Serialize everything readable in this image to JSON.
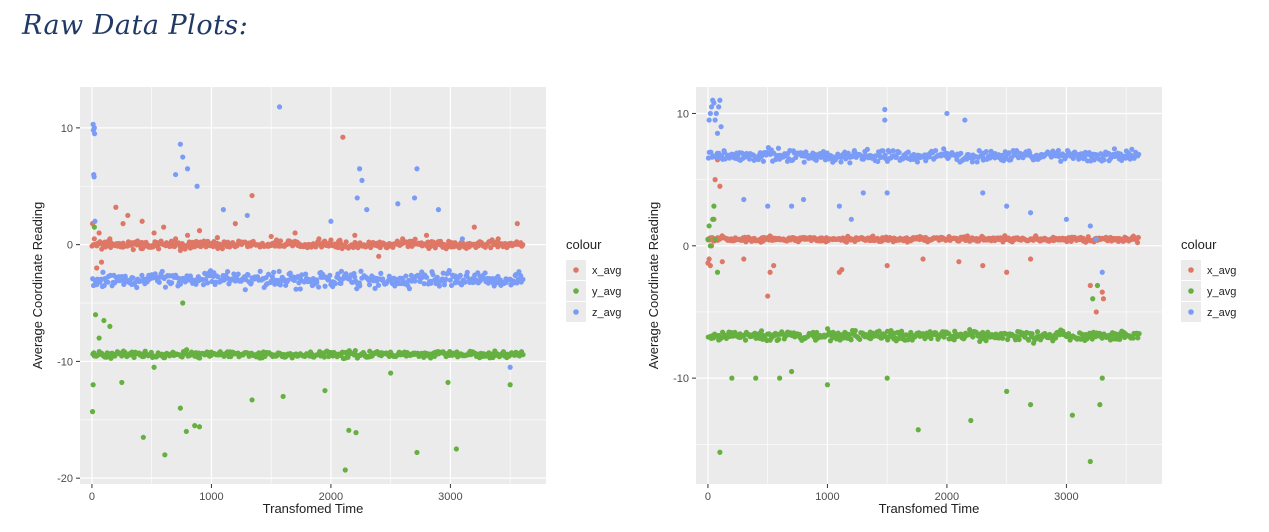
{
  "page": {
    "title": "Raw Data Plots:"
  },
  "colors": {
    "x_avg": "#de7766",
    "y_avg": "#65b040",
    "z_avg": "#7a9cf6",
    "panel": "#ebebeb",
    "grid": "#ffffff"
  },
  "chart_data": [
    {
      "type": "scatter",
      "xlabel": "Transfomed Time",
      "ylabel": "Average Coordinate Reading",
      "xlim": [
        -100,
        3800
      ],
      "ylim": [
        -20.5,
        13.5
      ],
      "xticks": [
        0,
        1000,
        2000,
        3000
      ],
      "yticks": [
        -20,
        -10,
        0,
        10
      ],
      "legend": {
        "title": "colour",
        "position": "right",
        "entries": [
          "x_avg",
          "y_avg",
          "z_avg"
        ]
      },
      "series": [
        {
          "name": "x_avg",
          "level": 0.0,
          "noise": 0.4,
          "x": [
            5,
            20,
            40,
            60,
            80,
            150,
            200,
            260,
            300,
            420,
            520,
            600,
            700,
            740,
            800,
            900,
            1050,
            1200,
            1340,
            1500,
            1700,
            1900,
            2100,
            2200,
            2400,
            2600,
            2800,
            3000,
            3200,
            3400,
            3560
          ],
          "y": [
            1.8,
            0.5,
            -2.0,
            1.0,
            -1.5,
            0.5,
            3.2,
            1.8,
            2.5,
            2.0,
            1.0,
            1.5,
            0.5,
            -0.5,
            0.8,
            1.2,
            0.6,
            1.8,
            4.2,
            0.7,
            1.0,
            0.5,
            9.2,
            0.8,
            -1.0,
            0.5,
            0.8,
            0.2,
            1.5,
            0.5,
            1.8
          ]
        },
        {
          "name": "y_avg",
          "level": -9.4,
          "noise": 0.35,
          "x": [
            5,
            10,
            20,
            30,
            60,
            100,
            150,
            250,
            430,
            520,
            610,
            740,
            760,
            790,
            860,
            900,
            1340,
            1600,
            1950,
            2120,
            2150,
            2210,
            2500,
            2720,
            2980,
            3050,
            3500
          ],
          "y": [
            -14.3,
            -12.0,
            1.5,
            -6.0,
            -8.0,
            -6.5,
            -7.0,
            -11.8,
            -16.5,
            -10.5,
            -18.0,
            -14.0,
            -5.0,
            -16.0,
            -15.5,
            -15.6,
            -13.3,
            -13.0,
            -12.5,
            -19.3,
            -15.9,
            -16.1,
            -11.0,
            -17.8,
            -11.8,
            -17.5,
            -12.0
          ]
        },
        {
          "name": "z_avg",
          "level": -3.0,
          "noise": 0.8,
          "x": [
            10,
            12,
            15,
            18,
            20,
            22,
            25,
            700,
            740,
            760,
            800,
            880,
            1100,
            1300,
            1570,
            2000,
            2220,
            2240,
            2260,
            2300,
            2560,
            2700,
            2720,
            2900,
            3100,
            3500
          ],
          "y": [
            10.3,
            9.8,
            6.0,
            5.8,
            10.0,
            9.5,
            2.0,
            6.0,
            8.6,
            7.5,
            6.5,
            5.0,
            3.0,
            2.5,
            11.8,
            2.0,
            4.0,
            6.5,
            5.5,
            3.0,
            3.5,
            4.0,
            6.5,
            3.0,
            0.5,
            -10.5
          ]
        }
      ]
    },
    {
      "type": "scatter",
      "xlabel": "Transfomed Time",
      "ylabel": "Average Coordinate Reading",
      "xlim": [
        -100,
        3800
      ],
      "ylim": [
        -18,
        12
      ],
      "xticks": [
        0,
        1000,
        2000,
        3000
      ],
      "yticks": [
        -10,
        0,
        10
      ],
      "legend": {
        "title": "colour",
        "position": "right",
        "entries": [
          "x_avg",
          "y_avg",
          "z_avg"
        ]
      },
      "series": [
        {
          "name": "x_avg",
          "level": 0.5,
          "noise": 0.25,
          "x": [
            0,
            10,
            20,
            30,
            50,
            60,
            80,
            100,
            120,
            300,
            500,
            520,
            550,
            1100,
            1120,
            1500,
            1800,
            2100,
            2300,
            2500,
            2700,
            3200,
            3250,
            3300,
            3310
          ],
          "y": [
            -1.3,
            -1.0,
            -1.5,
            0.0,
            2.0,
            5.0,
            6.5,
            4.5,
            -1.2,
            -1.0,
            -3.8,
            -2.0,
            -1.5,
            -2.0,
            -1.8,
            -1.5,
            -1.0,
            -1.2,
            -1.5,
            -2.0,
            -1.0,
            -3.0,
            -5.0,
            -3.5,
            -4.0
          ]
        },
        {
          "name": "y_avg",
          "level": -6.8,
          "noise": 0.5,
          "x": [
            0,
            10,
            20,
            40,
            50,
            60,
            80,
            100,
            200,
            400,
            600,
            700,
            1000,
            1500,
            1760,
            2200,
            2500,
            2700,
            3050,
            3200,
            3220,
            3260,
            3280,
            3300
          ],
          "y": [
            0.5,
            1.5,
            0.0,
            2.0,
            3.0,
            0.5,
            -2.0,
            -15.6,
            -10.0,
            -10.0,
            -10.0,
            -9.5,
            -10.5,
            -10.0,
            -13.9,
            -13.2,
            -11.0,
            -12.0,
            -12.8,
            -16.3,
            -4.0,
            -3.0,
            -12.0,
            -10.0
          ]
        },
        {
          "name": "z_avg",
          "level": 6.8,
          "noise": 0.55,
          "x": [
            10,
            20,
            30,
            40,
            50,
            60,
            70,
            80,
            90,
            100,
            110,
            300,
            500,
            700,
            800,
            1100,
            1200,
            1300,
            1480,
            1480,
            1500,
            2000,
            2150,
            2300,
            2500,
            2700,
            3000,
            3200,
            3250,
            3300
          ],
          "y": [
            9.5,
            10.0,
            10.5,
            11.0,
            10.8,
            9.5,
            10.0,
            8.5,
            10.5,
            11.0,
            9.0,
            3.5,
            3.0,
            3.0,
            3.5,
            3.0,
            2.0,
            4.0,
            10.3,
            9.5,
            4.0,
            10.0,
            9.5,
            4.0,
            3.0,
            2.5,
            2.0,
            1.5,
            0.5,
            -2.0
          ]
        }
      ]
    }
  ]
}
